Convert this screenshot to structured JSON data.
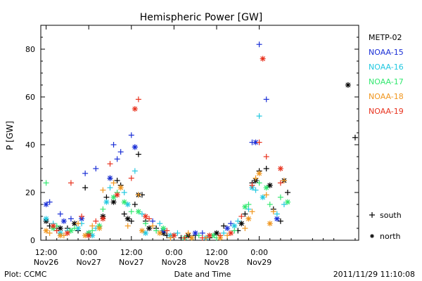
{
  "chart_data": {
    "type": "scatter",
    "title": "Hemispheric Power [GW]",
    "ylabel": "P [GW]",
    "xlabel": "Date and Time",
    "ylim": [
      0,
      90
    ],
    "yticks": [
      0,
      20,
      40,
      60,
      80
    ],
    "x_unit": "hours since 2011-11-26 12:00",
    "xlim": [
      -1.5,
      88
    ],
    "xticks": [
      {
        "x": 0,
        "time": "12:00",
        "date": "Nov26"
      },
      {
        "x": 12,
        "time": "0:00",
        "date": "Nov27"
      },
      {
        "x": 24,
        "time": "12:00",
        "date": "Nov27"
      },
      {
        "x": 36,
        "time": "0:00",
        "date": "Nov28"
      },
      {
        "x": 48,
        "time": "12:00",
        "date": "Nov28"
      },
      {
        "x": 60,
        "time": "0:00",
        "date": "Nov29"
      }
    ],
    "series": [
      {
        "name": "METP-02",
        "color": "#000000",
        "south": [
          [
            1,
            6
          ],
          [
            3,
            5
          ],
          [
            6,
            5
          ],
          [
            9,
            4
          ],
          [
            11,
            22
          ],
          [
            15,
            6
          ],
          [
            17,
            18
          ],
          [
            18,
            26
          ],
          [
            20,
            25
          ],
          [
            21,
            23
          ],
          [
            22,
            11
          ],
          [
            24,
            8
          ],
          [
            25,
            15
          ],
          [
            26,
            36
          ],
          [
            27,
            19
          ],
          [
            28,
            8
          ],
          [
            31,
            5
          ],
          [
            34,
            2
          ],
          [
            38,
            1
          ],
          [
            42,
            2
          ],
          [
            46,
            1
          ],
          [
            50,
            6
          ],
          [
            54,
            4
          ],
          [
            56,
            11
          ],
          [
            58,
            24
          ],
          [
            60,
            29
          ],
          [
            62,
            30
          ],
          [
            64,
            13
          ],
          [
            66,
            8
          ],
          [
            68,
            20
          ],
          [
            87,
            43
          ]
        ],
        "north": [
          [
            0,
            8
          ],
          [
            4,
            5
          ],
          [
            8,
            7
          ],
          [
            12,
            3
          ],
          [
            16,
            10
          ],
          [
            19,
            16
          ],
          [
            23,
            9
          ],
          [
            26,
            19
          ],
          [
            29,
            5
          ],
          [
            33,
            3
          ],
          [
            40,
            2
          ],
          [
            48,
            3
          ],
          [
            55,
            7
          ],
          [
            59,
            25
          ],
          [
            63,
            23
          ],
          [
            67,
            25
          ],
          [
            85,
            65
          ]
        ]
      },
      {
        "name": "NOAA-15",
        "color": "#1a2fd6",
        "south": [
          [
            1,
            16
          ],
          [
            4,
            11
          ],
          [
            7,
            9
          ],
          [
            11,
            28
          ],
          [
            14,
            30
          ],
          [
            19,
            40
          ],
          [
            20,
            34
          ],
          [
            21,
            37
          ],
          [
            24,
            44
          ],
          [
            25,
            39
          ],
          [
            30,
            8
          ],
          [
            36,
            2
          ],
          [
            44,
            3
          ],
          [
            52,
            7
          ],
          [
            58,
            41
          ],
          [
            60,
            82
          ],
          [
            62,
            59
          ]
        ],
        "north": [
          [
            0,
            15
          ],
          [
            5,
            8
          ],
          [
            10,
            9
          ],
          [
            18,
            26
          ],
          [
            25,
            39
          ],
          [
            33,
            4
          ],
          [
            42,
            3
          ],
          [
            51,
            5
          ],
          [
            59,
            41
          ],
          [
            65,
            9
          ]
        ]
      },
      {
        "name": "NOAA-16",
        "color": "#22c8e0",
        "south": [
          [
            2,
            7
          ],
          [
            6,
            4
          ],
          [
            10,
            7
          ],
          [
            14,
            5
          ],
          [
            18,
            22
          ],
          [
            22,
            20
          ],
          [
            25,
            29
          ],
          [
            27,
            11
          ],
          [
            32,
            7
          ],
          [
            37,
            3
          ],
          [
            41,
            1
          ],
          [
            46,
            2
          ],
          [
            50,
            3
          ],
          [
            54,
            8
          ],
          [
            57,
            13
          ],
          [
            59,
            21
          ],
          [
            60,
            52
          ],
          [
            65,
            11
          ],
          [
            67,
            15
          ]
        ],
        "north": [
          [
            0,
            9
          ],
          [
            4,
            3
          ],
          [
            9,
            5
          ],
          [
            13,
            2
          ],
          [
            17,
            16
          ],
          [
            23,
            15
          ],
          [
            28,
            3
          ],
          [
            35,
            2
          ],
          [
            45,
            1
          ],
          [
            53,
            6
          ],
          [
            58,
            22
          ],
          [
            61,
            18
          ]
        ]
      },
      {
        "name": "NOAA-17",
        "color": "#33e870",
        "south": [
          [
            0,
            24
          ],
          [
            3,
            6
          ],
          [
            8,
            5
          ],
          [
            13,
            4
          ],
          [
            16,
            13
          ],
          [
            20,
            20
          ],
          [
            24,
            12
          ],
          [
            28,
            7
          ],
          [
            31,
            4
          ],
          [
            36,
            2
          ],
          [
            43,
            2
          ],
          [
            48,
            1
          ],
          [
            53,
            4
          ],
          [
            57,
            15
          ],
          [
            60,
            24
          ],
          [
            63,
            15
          ],
          [
            66,
            18
          ]
        ],
        "north": [
          [
            2,
            5
          ],
          [
            7,
            4
          ],
          [
            12,
            3
          ],
          [
            15,
            6
          ],
          [
            19,
            18
          ],
          [
            22,
            16
          ],
          [
            26,
            12
          ],
          [
            33,
            5
          ],
          [
            39,
            1
          ],
          [
            47,
            2
          ],
          [
            56,
            14
          ],
          [
            62,
            22
          ],
          [
            68,
            16
          ]
        ]
      },
      {
        "name": "NOAA-18",
        "color": "#f0961e",
        "south": [
          [
            1,
            3
          ],
          [
            5,
            2
          ],
          [
            9,
            7
          ],
          [
            13,
            6
          ],
          [
            16,
            21
          ],
          [
            19,
            24
          ],
          [
            23,
            6
          ],
          [
            26,
            19
          ],
          [
            30,
            6
          ],
          [
            35,
            1
          ],
          [
            40,
            3
          ],
          [
            45,
            1
          ],
          [
            51,
            2
          ],
          [
            56,
            5
          ],
          [
            58,
            12
          ],
          [
            59,
            26
          ],
          [
            62,
            19
          ],
          [
            64,
            12
          ],
          [
            67,
            25
          ]
        ],
        "north": [
          [
            0,
            4
          ],
          [
            4,
            2
          ],
          [
            11,
            2
          ],
          [
            15,
            5
          ],
          [
            21,
            22
          ],
          [
            27,
            4
          ],
          [
            32,
            3
          ],
          [
            41,
            1
          ],
          [
            49,
            1
          ],
          [
            57,
            9
          ],
          [
            60,
            28
          ],
          [
            63,
            7
          ]
        ]
      },
      {
        "name": "NOAA-19",
        "color": "#e8321e",
        "south": [
          [
            3,
            4
          ],
          [
            7,
            24
          ],
          [
            10,
            10
          ],
          [
            14,
            8
          ],
          [
            18,
            32
          ],
          [
            24,
            26
          ],
          [
            26,
            59
          ],
          [
            29,
            9
          ],
          [
            34,
            4
          ],
          [
            39,
            1
          ],
          [
            44,
            1
          ],
          [
            49,
            2
          ],
          [
            55,
            10
          ],
          [
            58,
            23
          ],
          [
            60,
            41
          ],
          [
            62,
            35
          ],
          [
            66,
            24
          ]
        ],
        "north": [
          [
            2,
            6
          ],
          [
            6,
            3
          ],
          [
            12,
            2
          ],
          [
            16,
            9
          ],
          [
            20,
            19
          ],
          [
            25,
            55
          ],
          [
            28,
            10
          ],
          [
            36,
            2
          ],
          [
            46,
            2
          ],
          [
            52,
            3
          ],
          [
            61,
            76
          ],
          [
            66,
            30
          ]
        ]
      }
    ],
    "symbol_key": [
      {
        "symbol": "+",
        "label": "south"
      },
      {
        "symbol": "*",
        "label": "north"
      }
    ]
  },
  "footer": {
    "left": "Plot: CCMC",
    "right": "2011/11/29 11:10:08"
  }
}
